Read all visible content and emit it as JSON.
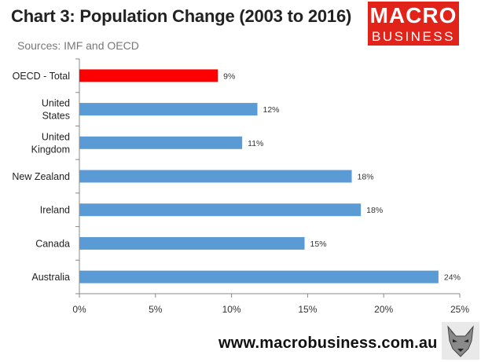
{
  "header": {
    "title": "Chart 3: Population Change (2003 to 2016)",
    "subtitle": "Sources: IMF and OECD"
  },
  "logo": {
    "line1": "MACRO",
    "line2": "BUSINESS",
    "color": "#e2231a"
  },
  "footer": {
    "url": "www.macrobusiness.com.au",
    "mascot_icon": "wolf-icon"
  },
  "chart_data": {
    "type": "bar",
    "orientation": "horizontal",
    "title": "Chart 3: Population Change (2003 to 2016)",
    "subtitle": "Sources: IMF and OECD",
    "categories": [
      [
        "OECD - Total"
      ],
      [
        "United",
        "States"
      ],
      [
        "United",
        "Kingdom"
      ],
      [
        "New Zealand"
      ],
      [
        "Ireland"
      ],
      [
        "Canada"
      ],
      [
        "Australia"
      ]
    ],
    "values": [
      9.1,
      11.7,
      10.7,
      17.9,
      18.5,
      14.8,
      23.6
    ],
    "value_labels": [
      "9%",
      "12%",
      "11%",
      "18%",
      "18%",
      "15%",
      "24%"
    ],
    "bar_colors": [
      "#ff0000",
      "#5b9bd5",
      "#5b9bd5",
      "#5b9bd5",
      "#5b9bd5",
      "#5b9bd5",
      "#5b9bd5"
    ],
    "xlim": [
      0,
      25
    ],
    "xticks": [
      0,
      5,
      10,
      15,
      20,
      25
    ],
    "xtick_labels": [
      "0%",
      "5%",
      "10%",
      "15%",
      "20%",
      "25%"
    ],
    "grid": false,
    "legend": "none"
  }
}
